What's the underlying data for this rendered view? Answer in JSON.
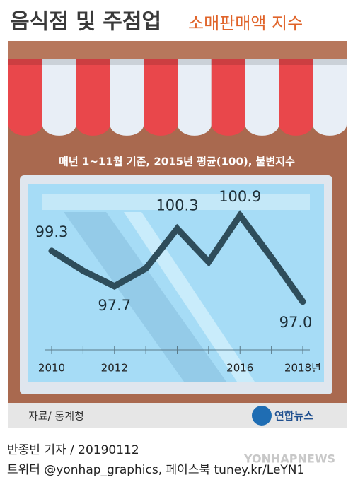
{
  "chart_data": {
    "type": "line",
    "title": "음식점 및 주점업",
    "title_suffix": "소매판매액 지수",
    "subtitle": "매년 1~11월 기준, 2015년 평균(100), 불변지수",
    "categories": [
      "2010",
      null,
      "2012",
      null,
      null,
      null,
      "2016",
      null,
      "2018년"
    ],
    "series": [
      {
        "name": "소매판매액 지수",
        "color": "#2e4d5b",
        "values": [
          99.3,
          98.4,
          97.7,
          98.5,
          100.3,
          98.8,
          100.9,
          99.0,
          97.0
        ],
        "value_labels": [
          "99.3",
          null,
          "97.7",
          null,
          "100.3",
          null,
          "100.9",
          null,
          "97.0"
        ]
      }
    ],
    "ylim": [
      96,
      102
    ],
    "source": "자료/ 통계청",
    "logo": "연합뉴스",
    "byline": "반종빈 기자 / 20190112",
    "social": "트위터 @yonhap_graphics, 페이스북 tuney.kr/LeYN1",
    "watermark": "YONHAPNEWS"
  }
}
